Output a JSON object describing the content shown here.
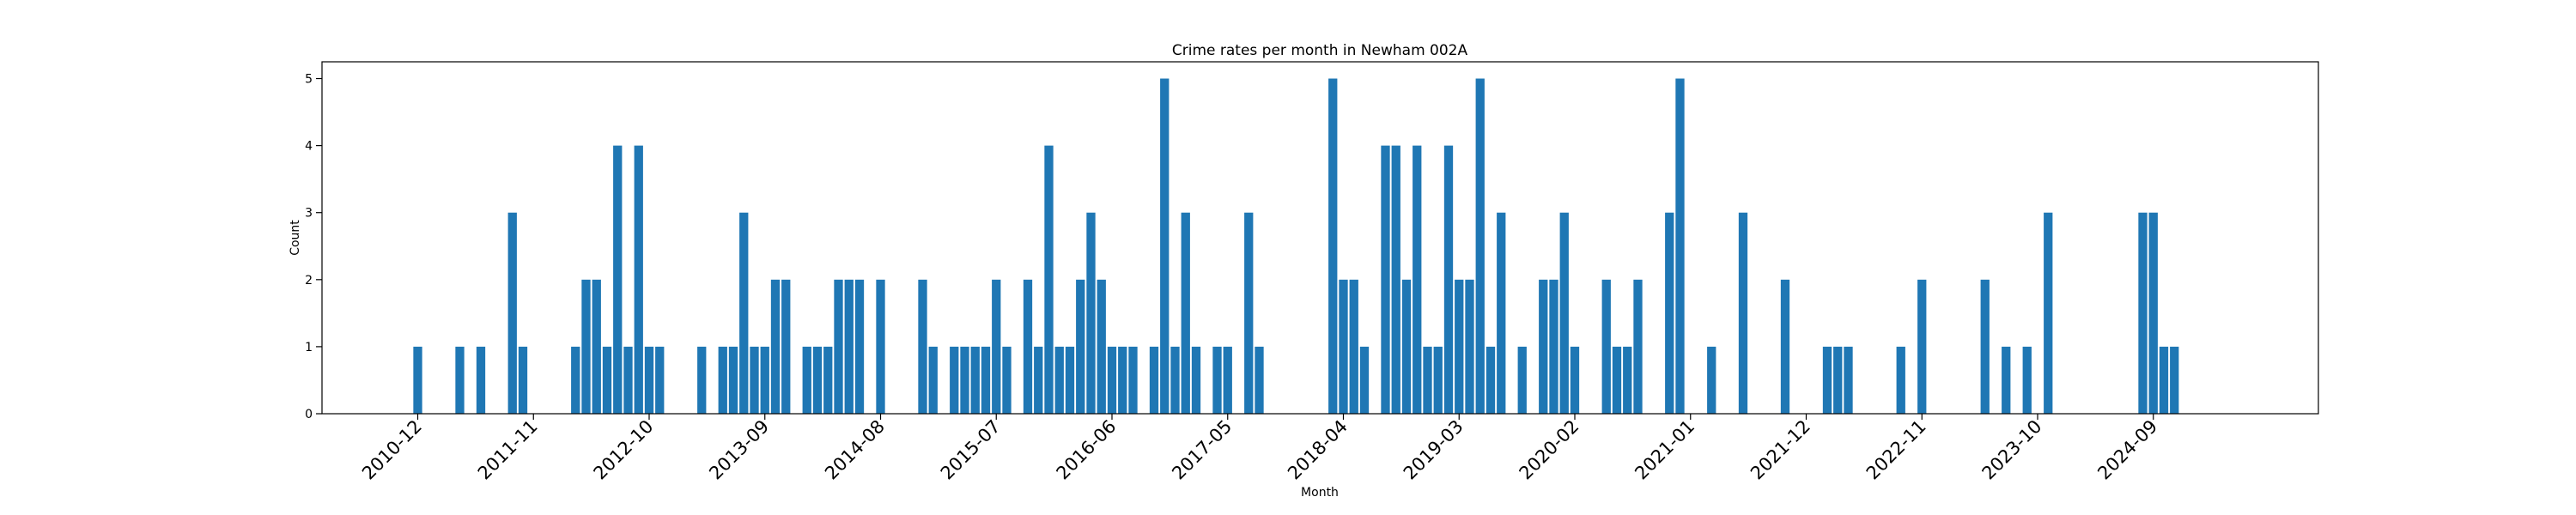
{
  "chart_data": {
    "type": "bar",
    "title": "Crime rates per month in Newham 002A",
    "xlabel": "Month",
    "ylabel": "Count",
    "ylim": [
      0,
      5.25
    ],
    "yticks": [
      0,
      1,
      2,
      3,
      4,
      5
    ],
    "grid": false,
    "legend": "none",
    "bar_color": "#1f77b4",
    "xtick_labels": [
      "2010-12",
      "2011-11",
      "2012-10",
      "2013-09",
      "2014-08",
      "2015-07",
      "2016-06",
      "2017-05",
      "2018-04",
      "2019-03",
      "2020-02",
      "2021-01",
      "2021-12",
      "2022-11",
      "2023-10",
      "2024-09"
    ],
    "categories": [
      "2010-12",
      "2011-04",
      "2011-06",
      "2011-09",
      "2011-10",
      "2012-03",
      "2012-04",
      "2012-05",
      "2012-06",
      "2012-07",
      "2012-08",
      "2012-09",
      "2012-10",
      "2012-11",
      "2013-03",
      "2013-05",
      "2013-06",
      "2013-07",
      "2013-08",
      "2013-09",
      "2013-10",
      "2013-11",
      "2014-01",
      "2014-02",
      "2014-03",
      "2014-04",
      "2014-05",
      "2014-06",
      "2014-08",
      "2014-12",
      "2015-01",
      "2015-03",
      "2015-04",
      "2015-05",
      "2015-06",
      "2015-07",
      "2015-08",
      "2015-10",
      "2015-11",
      "2015-12",
      "2016-01",
      "2016-02",
      "2016-03",
      "2016-04",
      "2016-05",
      "2016-06",
      "2016-07",
      "2016-08",
      "2016-10",
      "2016-11",
      "2016-12",
      "2017-01",
      "2017-02",
      "2017-04",
      "2017-05",
      "2017-07",
      "2017-08",
      "2018-03",
      "2018-04",
      "2018-05",
      "2018-06",
      "2018-08",
      "2018-09",
      "2018-10",
      "2018-11",
      "2018-12",
      "2019-01",
      "2019-02",
      "2019-03",
      "2019-04",
      "2019-05",
      "2019-06",
      "2019-07",
      "2019-09",
      "2019-11",
      "2019-12",
      "2020-01",
      "2020-02",
      "2020-05",
      "2020-06",
      "2020-07",
      "2020-08",
      "2020-11",
      "2020-12",
      "2021-03",
      "2021-06",
      "2021-10",
      "2022-02",
      "2022-03",
      "2022-04",
      "2022-09",
      "2022-11",
      "2023-05",
      "2023-07",
      "2023-09",
      "2023-11",
      "2024-08",
      "2024-09",
      "2024-10",
      "2024-11"
    ],
    "values": [
      1,
      1,
      1,
      3,
      1,
      1,
      2,
      2,
      1,
      4,
      1,
      4,
      1,
      1,
      1,
      1,
      1,
      3,
      1,
      1,
      2,
      2,
      1,
      1,
      1,
      2,
      2,
      2,
      2,
      2,
      1,
      1,
      1,
      1,
      1,
      2,
      1,
      2,
      1,
      4,
      1,
      1,
      2,
      3,
      2,
      1,
      1,
      1,
      1,
      5,
      1,
      3,
      1,
      1,
      1,
      3,
      1,
      5,
      2,
      2,
      1,
      4,
      4,
      2,
      4,
      1,
      1,
      4,
      2,
      2,
      5,
      1,
      3,
      1,
      2,
      2,
      3,
      1,
      2,
      1,
      1,
      2,
      3,
      5,
      1,
      3,
      2,
      1,
      1,
      1,
      1,
      2,
      2,
      1,
      1,
      3,
      3,
      3,
      1,
      1
    ]
  }
}
